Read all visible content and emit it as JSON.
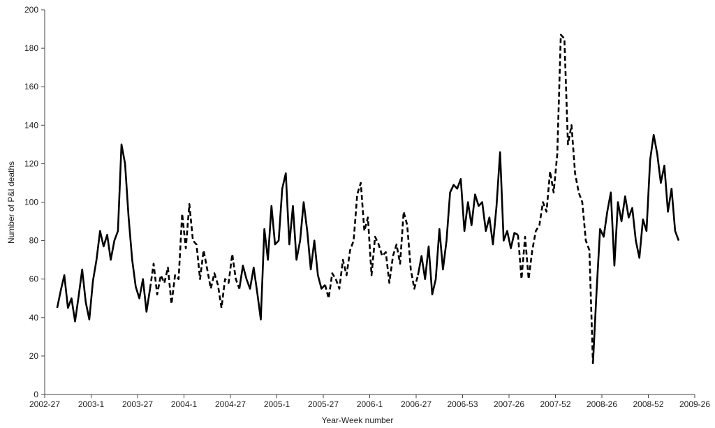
{
  "chart_data": {
    "type": "line",
    "x_label": "Year-Week number",
    "y_label": "Number of P&I deaths",
    "xlim": [
      0,
      364
    ],
    "xticks": [
      {
        "value": 0,
        "label": "2002-27"
      },
      {
        "value": 26,
        "label": "2003-1"
      },
      {
        "value": 52,
        "label": "2003-27"
      },
      {
        "value": 78,
        "label": "2004-1"
      },
      {
        "value": 104,
        "label": "2004-27"
      },
      {
        "value": 130,
        "label": "2005-1"
      },
      {
        "value": 156,
        "label": "2005-27"
      },
      {
        "value": 182,
        "label": "2006-1"
      },
      {
        "value": 208,
        "label": "2006-27"
      },
      {
        "value": 234,
        "label": "2006-53"
      },
      {
        "value": 260,
        "label": "2007-26"
      },
      {
        "value": 286,
        "label": "2007-52"
      },
      {
        "value": 312,
        "label": "2008-26"
      },
      {
        "value": 338,
        "label": "2008-52"
      },
      {
        "value": 364,
        "label": "2009-26"
      }
    ],
    "ylim": [
      0,
      200
    ],
    "yticks": [
      0,
      20,
      40,
      60,
      80,
      100,
      120,
      140,
      160,
      180,
      200
    ],
    "grid": false,
    "series": [
      {
        "color": "#000000",
        "dashed": false,
        "x": [
          7,
          9,
          11,
          13,
          15,
          17,
          19,
          21,
          23,
          25,
          27,
          29,
          31,
          33,
          35,
          37,
          39,
          41,
          43,
          45,
          47,
          49,
          51,
          53,
          55,
          57,
          59
        ],
        "values": [
          45,
          54,
          62,
          45,
          50,
          38,
          51,
          65,
          48,
          39,
          59,
          70,
          85,
          77,
          83,
          70,
          80,
          85,
          130,
          120,
          92,
          70,
          56,
          50,
          60,
          43,
          55
        ]
      },
      {
        "color": "#000000",
        "dashed": true,
        "x": [
          59,
          61,
          63,
          65,
          67,
          69,
          71,
          73,
          75,
          77,
          79,
          81,
          83,
          85,
          87,
          89,
          91,
          93,
          95,
          97,
          99,
          101,
          103,
          105,
          107,
          109
        ],
        "values": [
          55,
          68,
          52,
          62,
          58,
          66,
          47,
          62,
          60,
          94,
          76,
          99,
          80,
          78,
          60,
          75,
          65,
          55,
          63,
          57,
          45,
          60,
          58,
          73,
          60,
          55
        ]
      },
      {
        "color": "#000000",
        "dashed": false,
        "x": [
          109,
          111,
          113,
          115,
          117,
          119,
          121,
          123,
          125,
          127,
          129,
          131,
          133,
          135,
          137,
          139,
          141,
          143,
          145,
          147,
          149,
          151,
          153,
          155,
          157
        ],
        "values": [
          55,
          67,
          60,
          55,
          66,
          53,
          39,
          86,
          70,
          98,
          78,
          80,
          107,
          115,
          78,
          98,
          70,
          80,
          100,
          85,
          65,
          80,
          62,
          55,
          57
        ]
      },
      {
        "color": "#000000",
        "dashed": true,
        "x": [
          157,
          159,
          161,
          163,
          165,
          167,
          169,
          171,
          173,
          175,
          177,
          179,
          181,
          183,
          185,
          187,
          189,
          191,
          193,
          195,
          197,
          199,
          201,
          203,
          205,
          207,
          209
        ],
        "values": [
          57,
          50,
          63,
          60,
          55,
          70,
          62,
          75,
          80,
          104,
          110,
          85,
          92,
          62,
          82,
          78,
          72,
          74,
          58,
          72,
          78,
          68,
          95,
          88,
          65,
          55,
          62
        ]
      },
      {
        "color": "#000000",
        "dashed": false,
        "x": [
          209,
          211,
          213,
          215,
          217,
          219,
          221,
          223,
          225,
          227,
          229,
          231,
          233,
          235,
          237,
          239,
          241,
          243,
          245,
          247,
          249,
          251,
          253,
          255,
          257,
          259,
          261,
          263,
          265
        ],
        "values": [
          62,
          72,
          60,
          77,
          52,
          60,
          86,
          65,
          80,
          105,
          109,
          107,
          112,
          85,
          100,
          88,
          104,
          98,
          100,
          85,
          92,
          78,
          98,
          126,
          80,
          85,
          76,
          84,
          83
        ]
      },
      {
        "color": "#000000",
        "dashed": true,
        "x": [
          265,
          267,
          269,
          271,
          273,
          275,
          277,
          279,
          281,
          283,
          285,
          287,
          289,
          291,
          293,
          295,
          297,
          299,
          301,
          303,
          305,
          307
        ],
        "values": [
          83,
          60,
          82,
          60,
          75,
          85,
          88,
          100,
          95,
          116,
          105,
          125,
          187,
          185,
          130,
          140,
          115,
          105,
          100,
          80,
          75,
          16
        ]
      },
      {
        "color": "#000000",
        "dashed": false,
        "x": [
          307,
          309,
          311,
          313,
          315,
          317,
          319,
          321,
          323,
          325,
          327,
          329,
          331,
          333,
          335,
          337,
          339,
          341,
          343,
          345,
          347,
          349,
          351,
          353,
          355
        ],
        "values": [
          16,
          53,
          86,
          82,
          95,
          105,
          67,
          100,
          90,
          103,
          92,
          97,
          80,
          71,
          91,
          85,
          122,
          135,
          125,
          110,
          119,
          95,
          107,
          85,
          80
        ]
      }
    ]
  }
}
